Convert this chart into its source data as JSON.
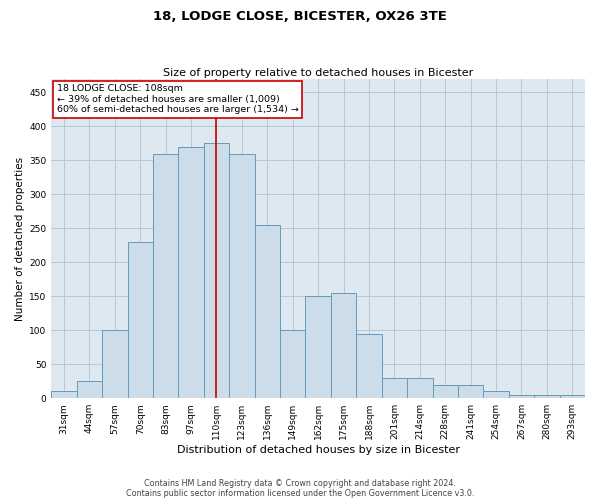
{
  "title": "18, LODGE CLOSE, BICESTER, OX26 3TE",
  "subtitle": "Size of property relative to detached houses in Bicester",
  "xlabel": "Distribution of detached houses by size in Bicester",
  "ylabel": "Number of detached properties",
  "categories": [
    "31sqm",
    "44sqm",
    "57sqm",
    "70sqm",
    "83sqm",
    "97sqm",
    "110sqm",
    "123sqm",
    "136sqm",
    "149sqm",
    "162sqm",
    "175sqm",
    "188sqm",
    "201sqm",
    "214sqm",
    "228sqm",
    "241sqm",
    "254sqm",
    "267sqm",
    "280sqm",
    "293sqm"
  ],
  "values": [
    10,
    25,
    100,
    230,
    360,
    370,
    375,
    360,
    255,
    100,
    150,
    155,
    95,
    30,
    30,
    20,
    20,
    10,
    5,
    5,
    5
  ],
  "bar_color": "#ccdce8",
  "bar_edge_color": "#6699bb",
  "bar_width": 1.0,
  "vline_color": "#cc0000",
  "vline_x": 6.0,
  "ylim": [
    0,
    470
  ],
  "yticks": [
    0,
    50,
    100,
    150,
    200,
    250,
    300,
    350,
    400,
    450
  ],
  "annotation_text": "18 LODGE CLOSE: 108sqm\n← 39% of detached houses are smaller (1,009)\n60% of semi-detached houses are larger (1,534) →",
  "annotation_box_color": "#ffffff",
  "annotation_box_edge_color": "#cc0000",
  "background_color": "#ffffff",
  "plot_bg_color": "#dde8f0",
  "grid_color": "#b8c8d8",
  "title_fontsize": 9.5,
  "subtitle_fontsize": 8,
  "ylabel_fontsize": 7.5,
  "xlabel_fontsize": 8,
  "tick_fontsize": 6.5,
  "footer_line1": "Contains HM Land Registry data © Crown copyright and database right 2024.",
  "footer_line2": "Contains public sector information licensed under the Open Government Licence v3.0."
}
